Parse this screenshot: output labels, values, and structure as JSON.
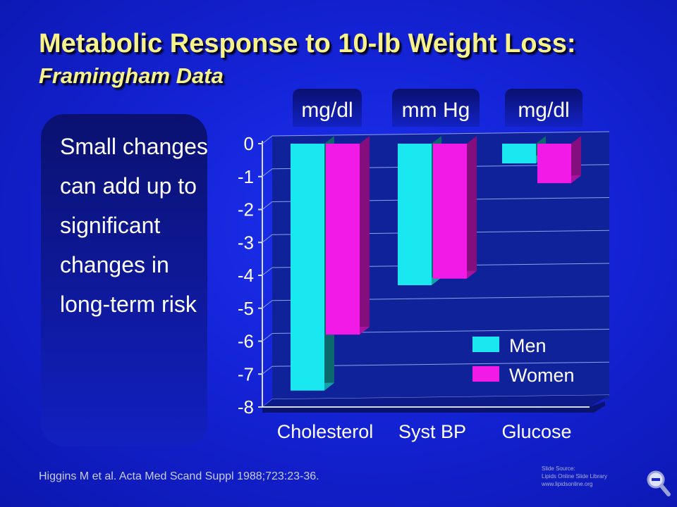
{
  "slide": {
    "title": "Metabolic Response to 10-lb Weight Loss:",
    "subtitle": "Framingham Data",
    "side_text": "Small changes can add up to significant changes in long-term risk",
    "citation": "Higgins M et al. Acta Med Scand Suppl 1988;723:23-36.",
    "source_lines": [
      "Slide Source:",
      "Lipids Online Slide Library",
      "www.lipidsonline.org"
    ],
    "units": [
      "mg/dl",
      "mm Hg",
      "mg/dl"
    ]
  },
  "colors": {
    "men": "#19e8f0",
    "women": "#f21ae6",
    "title": "#f7f28a"
  },
  "chart_data": {
    "type": "bar",
    "categories": [
      "Cholesterol",
      "Syst BP",
      "Glucose"
    ],
    "series": [
      {
        "name": "Men",
        "values": [
          -7.5,
          -4.3,
          -0.6
        ]
      },
      {
        "name": "Women",
        "values": [
          -5.8,
          -4.1,
          -1.2
        ]
      }
    ],
    "yticks": [
      0,
      -1,
      -2,
      -3,
      -4,
      -5,
      -6,
      -7,
      -8
    ],
    "ylim": [
      -8,
      0
    ],
    "grid": true,
    "legend_position": "bottom-right"
  }
}
